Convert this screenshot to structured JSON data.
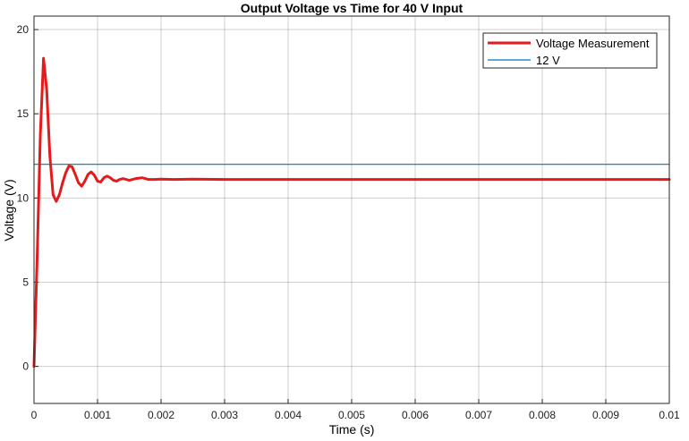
{
  "chart_data": {
    "type": "line",
    "title": "Output Voltage vs Time for 40 V Input",
    "xlabel": "Time (s)",
    "ylabel": "Voltage (V)",
    "xlim": [
      0,
      0.01
    ],
    "ylim": [
      -2.2,
      20.8
    ],
    "xticks": [
      "0",
      "0.001",
      "0.002",
      "0.003",
      "0.004",
      "0.005",
      "0.006",
      "0.007",
      "0.008",
      "0.009",
      "0.01"
    ],
    "yticks": [
      "0",
      "5",
      "10",
      "15",
      "20"
    ],
    "grid": true,
    "legend_position": "top-right",
    "series": [
      {
        "name": "Voltage Measurement",
        "color": "#e41a1c",
        "x": [
          0,
          5e-05,
          0.0001,
          0.00015,
          0.0002,
          0.00025,
          0.0003,
          0.00035,
          0.0004,
          0.00045,
          0.0005,
          0.00055,
          0.0006,
          0.00065,
          0.0007,
          0.00075,
          0.0008,
          0.00085,
          0.0009,
          0.00095,
          0.001,
          0.00105,
          0.0011,
          0.00115,
          0.0012,
          0.00125,
          0.0013,
          0.00135,
          0.0014,
          0.00145,
          0.0015,
          0.0016,
          0.0017,
          0.0018,
          0.0019,
          0.002,
          0.0022,
          0.0025,
          0.003,
          0.004,
          0.005,
          0.006,
          0.007,
          0.008,
          0.009,
          0.01
        ],
        "y": [
          0,
          6.5,
          13.8,
          18.3,
          16.4,
          12.5,
          10.2,
          9.8,
          10.2,
          10.9,
          11.5,
          11.9,
          11.85,
          11.4,
          10.9,
          10.7,
          11.0,
          11.4,
          11.55,
          11.35,
          11.0,
          10.95,
          11.2,
          11.3,
          11.2,
          11.05,
          11.0,
          11.1,
          11.15,
          11.1,
          11.05,
          11.15,
          11.2,
          11.1,
          11.1,
          11.12,
          11.1,
          11.12,
          11.1,
          11.1,
          11.1,
          11.1,
          11.1,
          11.1,
          11.1,
          11.1
        ]
      },
      {
        "name": "12 V",
        "color": "#0072bd",
        "x": [
          0,
          0.01
        ],
        "y": [
          12,
          12
        ]
      }
    ]
  }
}
